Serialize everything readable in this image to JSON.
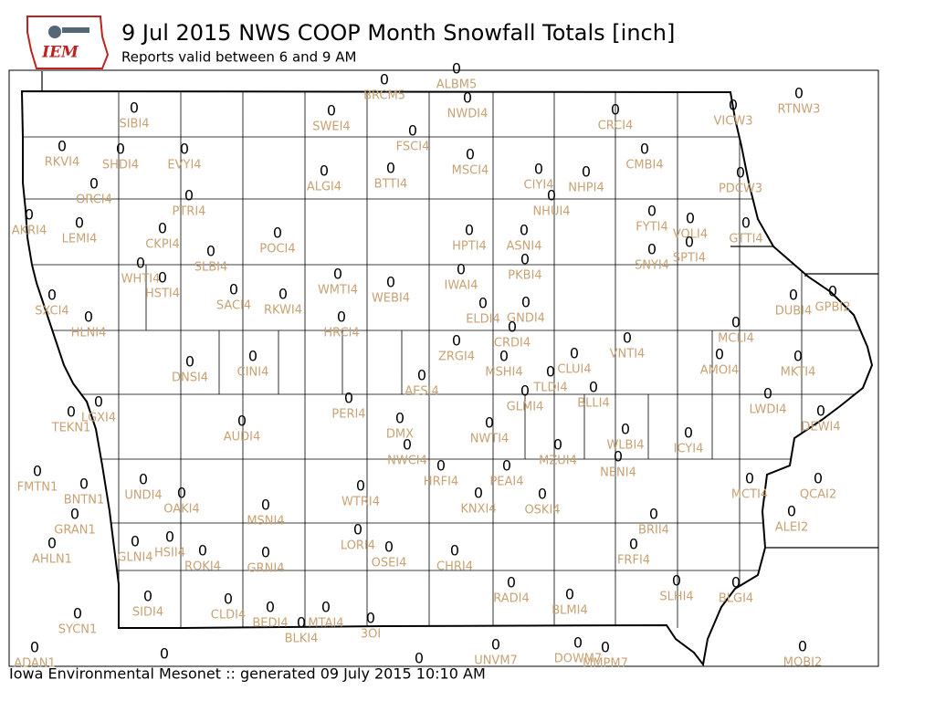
{
  "header": {
    "title": "9 Jul 2015 NWS COOP Month Snowfall Totals [inch]",
    "subtitle": "Reports valid between 6 and 9 AM",
    "logo": "IEM"
  },
  "footer": "Iowa Environmental Mesonet :: generated 09 July 2015 10:10 AM",
  "stations": [
    {
      "id": "BRCM5",
      "value": 0
    },
    {
      "id": "ALBM5",
      "value": 0
    },
    {
      "id": "NWDI4",
      "value": 0
    },
    {
      "id": "SIBI4",
      "value": 0
    },
    {
      "id": "SWEI4",
      "value": 0
    },
    {
      "id": "CRCI4",
      "value": 0
    },
    {
      "id": "VICW3",
      "value": 0
    },
    {
      "id": "RTNW3",
      "value": 0
    },
    {
      "id": "FSCI4",
      "value": 0
    },
    {
      "id": "RKVI4",
      "value": 0
    },
    {
      "id": "SHDI4",
      "value": 0
    },
    {
      "id": "EVYI4",
      "value": 0
    },
    {
      "id": "MSCI4",
      "value": 0
    },
    {
      "id": "CMBI4",
      "value": 0
    },
    {
      "id": "ALGI4",
      "value": 0
    },
    {
      "id": "BTTI4",
      "value": 0
    },
    {
      "id": "CIYI4",
      "value": 0
    },
    {
      "id": "NHPI4",
      "value": 0
    },
    {
      "id": "PDCW3",
      "value": 0
    },
    {
      "id": "ORCI4",
      "value": 0
    },
    {
      "id": "PTRI4",
      "value": 0
    },
    {
      "id": "NHUI4",
      "value": 0
    },
    {
      "id": "AKRI4",
      "value": 0
    },
    {
      "id": "LEMI4",
      "value": 0
    },
    {
      "id": "CKPI4",
      "value": 0
    },
    {
      "id": "POCI4",
      "value": 0
    },
    {
      "id": "HPTI4",
      "value": 0
    },
    {
      "id": "ASNI4",
      "value": 0
    },
    {
      "id": "FYTI4",
      "value": 0
    },
    {
      "id": "VOLI4",
      "value": 0
    },
    {
      "id": "GTTI4",
      "value": 0
    },
    {
      "id": "SLBI4",
      "value": 0
    },
    {
      "id": "SNYI4",
      "value": 0
    },
    {
      "id": "SPTI4",
      "value": 0
    },
    {
      "id": "WHTI4",
      "value": 0
    },
    {
      "id": "HSTI4",
      "value": 0
    },
    {
      "id": "WMTI4",
      "value": 0
    },
    {
      "id": "IWAI4",
      "value": 0
    },
    {
      "id": "PKBI4",
      "value": 0
    },
    {
      "id": "SACI4",
      "value": 0
    },
    {
      "id": "RKWI4",
      "value": 0
    },
    {
      "id": "WEBI4",
      "value": 0
    },
    {
      "id": "SXCI4",
      "value": 0
    },
    {
      "id": "DUBI4",
      "value": 0
    },
    {
      "id": "GPBI2",
      "value": 0
    },
    {
      "id": "ELDI4",
      "value": 0
    },
    {
      "id": "GNDI4",
      "value": 0
    },
    {
      "id": "HLNI4",
      "value": 0
    },
    {
      "id": "HRCI4",
      "value": 0
    },
    {
      "id": "MCLI4",
      "value": 0
    },
    {
      "id": "CRDI4",
      "value": 0
    },
    {
      "id": "ZRGI4",
      "value": 0
    },
    {
      "id": "VNTI4",
      "value": 0
    },
    {
      "id": "AMOI4",
      "value": 0
    },
    {
      "id": "DNSI4",
      "value": 0
    },
    {
      "id": "CINI4",
      "value": 0
    },
    {
      "id": "MSHI4",
      "value": 0
    },
    {
      "id": "CLUI4",
      "value": 0
    },
    {
      "id": "MKTI4",
      "value": 0
    },
    {
      "id": "TLDI4",
      "value": 0
    },
    {
      "id": "AESI4",
      "value": 0
    },
    {
      "id": "BLLI4",
      "value": 0
    },
    {
      "id": "LWDI4",
      "value": 0
    },
    {
      "id": "GLMI4",
      "value": 0
    },
    {
      "id": "PERI4",
      "value": 0
    },
    {
      "id": "LGXI4",
      "value": 0
    },
    {
      "id": "DEWI4",
      "value": 0
    },
    {
      "id": "TEKN1",
      "value": 0
    },
    {
      "id": "DMX",
      "value": 0
    },
    {
      "id": "AUDI4",
      "value": 0
    },
    {
      "id": "NWTI4",
      "value": 0
    },
    {
      "id": "WLBI4",
      "value": 0
    },
    {
      "id": "ICYI4",
      "value": 0
    },
    {
      "id": "NWCI4",
      "value": 0
    },
    {
      "id": "HRFI4",
      "value": 0
    },
    {
      "id": "PEAI4",
      "value": 0
    },
    {
      "id": "MZUI4",
      "value": 0
    },
    {
      "id": "NENI4",
      "value": 0
    },
    {
      "id": "FMTN1",
      "value": 0
    },
    {
      "id": "BNTN1",
      "value": 0
    },
    {
      "id": "UNDI4",
      "value": 0
    },
    {
      "id": "OAKI4",
      "value": 0
    },
    {
      "id": "WTRI4",
      "value": 0
    },
    {
      "id": "KNXI4",
      "value": 0
    },
    {
      "id": "OSKI4",
      "value": 0
    },
    {
      "id": "MCTI4",
      "value": 0
    },
    {
      "id": "QCAI2",
      "value": 0
    },
    {
      "id": "MSNI4",
      "value": 0
    },
    {
      "id": "GRAN1",
      "value": 0
    },
    {
      "id": "BRII4",
      "value": 0
    },
    {
      "id": "ALEI2",
      "value": 0
    },
    {
      "id": "AHLN1",
      "value": 0
    },
    {
      "id": "GLNI4",
      "value": 0
    },
    {
      "id": "HSII4",
      "value": 0
    },
    {
      "id": "ROKI4",
      "value": 0
    },
    {
      "id": "LORI4",
      "value": 0
    },
    {
      "id": "OSEI4",
      "value": 0
    },
    {
      "id": "CHRI4",
      "value": 0
    },
    {
      "id": "FRFI4",
      "value": 0
    },
    {
      "id": "GRNI4",
      "value": 0
    },
    {
      "id": "SLHI4",
      "value": 0
    },
    {
      "id": "BLGI4",
      "value": 0
    },
    {
      "id": "RADI4",
      "value": 0
    },
    {
      "id": "BLMI4",
      "value": 0
    },
    {
      "id": "SIDI4",
      "value": 0
    },
    {
      "id": "CLDI4",
      "value": 0
    },
    {
      "id": "BEDI4",
      "value": 0
    },
    {
      "id": "MTAI4",
      "value": 0
    },
    {
      "id": "BLKI4",
      "value": 0
    },
    {
      "id": "3OI",
      "value": 0
    },
    {
      "id": "SYCN1",
      "value": 0
    },
    {
      "id": "ADAN1",
      "value": 0
    },
    {
      "id": "UNVM7",
      "value": 0
    },
    {
      "id": "DOWM7",
      "value": 0
    },
    {
      "id": "MMPM7",
      "value": 0
    },
    {
      "id": "MOBI2",
      "value": 0
    },
    {
      "id": null,
      "value": 0
    },
    {
      "id": null,
      "value": 0
    }
  ]
}
